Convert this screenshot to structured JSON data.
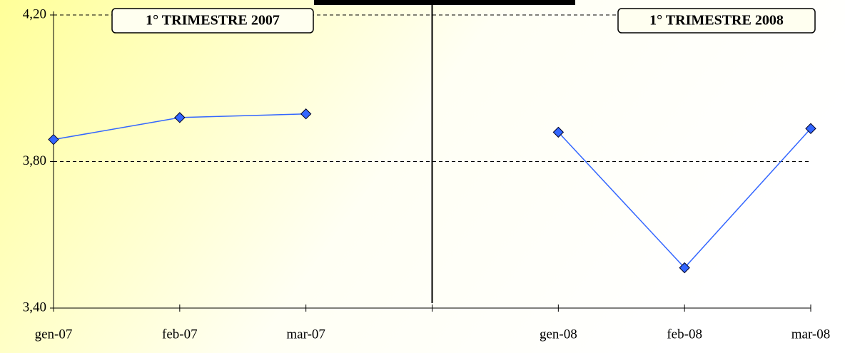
{
  "chart_data": {
    "type": "line",
    "categories": [
      "gen-07",
      "feb-07",
      "mar-07",
      null,
      "gen-08",
      "feb-08",
      "mar-08"
    ],
    "series": [
      {
        "name": null,
        "color": "#3366ff",
        "values": [
          3.86,
          3.92,
          3.93,
          null,
          3.88,
          3.51,
          3.89
        ]
      }
    ],
    "ylim": [
      3.4,
      4.2
    ],
    "yticks": [
      {
        "value": 3.4,
        "label": "3,40"
      },
      {
        "value": 3.8,
        "label": "3,80"
      },
      {
        "value": 4.2,
        "label": "4,20"
      }
    ],
    "grid": true,
    "annotations": [
      "1° TRIMESTRE 2007",
      "1° TRIMESTRE 2008"
    ]
  }
}
